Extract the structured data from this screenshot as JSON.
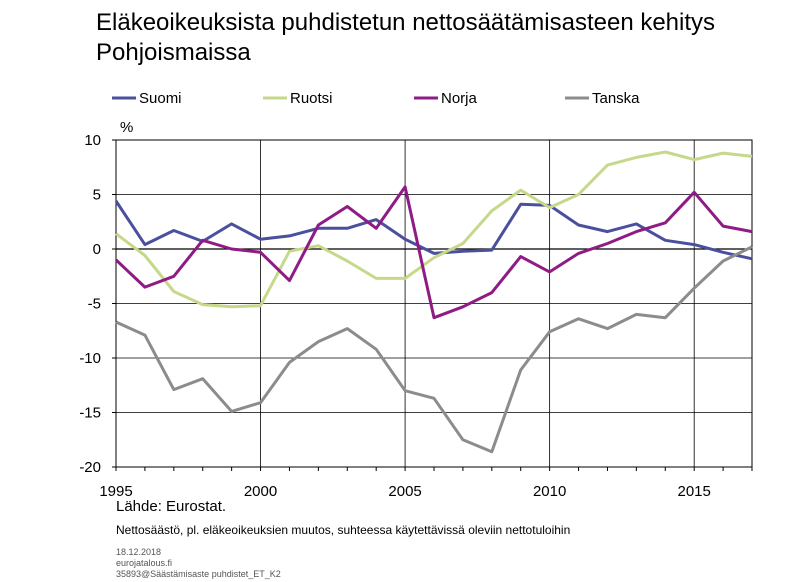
{
  "chart_data": {
    "type": "line",
    "title": "Eläkeoikeuksista puhdistetun nettosäätämisasteen kehitys Pohjoismaissa",
    "ylabel": "%",
    "xlabel": "",
    "ylim": [
      -20,
      10
    ],
    "xlim": [
      1995,
      2017
    ],
    "yticks": [
      10,
      5,
      0,
      -5,
      -10,
      -15,
      -20
    ],
    "xticks": [
      1995,
      2000,
      2005,
      2010,
      2015
    ],
    "grid": true,
    "legend_position": "top",
    "x": [
      1995,
      1996,
      1997,
      1998,
      1999,
      2000,
      2001,
      2002,
      2003,
      2004,
      2005,
      2006,
      2007,
      2008,
      2009,
      2010,
      2011,
      2012,
      2013,
      2014,
      2015,
      2016,
      2017
    ],
    "series": [
      {
        "name": "Suomi",
        "color": "#4a4f9e",
        "values": [
          4.4,
          0.4,
          1.7,
          0.7,
          2.3,
          0.9,
          1.2,
          1.9,
          1.9,
          2.7,
          0.9,
          -0.4,
          -0.2,
          -0.1,
          4.1,
          4.0,
          2.2,
          1.6,
          2.3,
          0.8,
          0.4,
          -0.3,
          -0.9
        ]
      },
      {
        "name": "Ruotsi",
        "color": "#c6d98a",
        "values": [
          1.4,
          -0.6,
          -3.9,
          -5.1,
          -5.3,
          -5.2,
          -0.2,
          0.3,
          -1.1,
          -2.7,
          -2.7,
          -0.8,
          0.5,
          3.5,
          5.4,
          3.8,
          5.0,
          7.7,
          8.4,
          8.9,
          8.2,
          8.8,
          8.5
        ]
      },
      {
        "name": "Norja",
        "color": "#8e1c84",
        "values": [
          -1.0,
          -3.5,
          -2.5,
          0.8,
          0.0,
          -0.3,
          -2.9,
          2.2,
          3.9,
          1.9,
          5.7,
          -6.3,
          -5.3,
          -4.0,
          -0.7,
          -2.1,
          -0.4,
          0.5,
          1.6,
          2.4,
          5.2,
          2.1,
          1.6
        ]
      },
      {
        "name": "Tanska",
        "color": "#8c8c8c",
        "values": [
          -6.7,
          -7.9,
          -12.9,
          -11.9,
          -14.9,
          -14.1,
          -10.4,
          -8.5,
          -7.3,
          -9.2,
          -13.0,
          -13.7,
          -17.5,
          -18.6,
          -11.1,
          -7.6,
          -6.4,
          -7.3,
          -6.0,
          -6.3,
          -3.6,
          -1.1,
          0.2
        ]
      }
    ]
  },
  "source": "Lähde: Eurostat.",
  "note": "Nettosäästö, pl. eläkeoikeuksien muutos, suhteessa käytettävissä oleviin nettotuloihin",
  "date": "18.12.2018",
  "site": "eurojatalous.fi",
  "file_id": "35893@Säästämisaste puhdistet_ET_K2"
}
